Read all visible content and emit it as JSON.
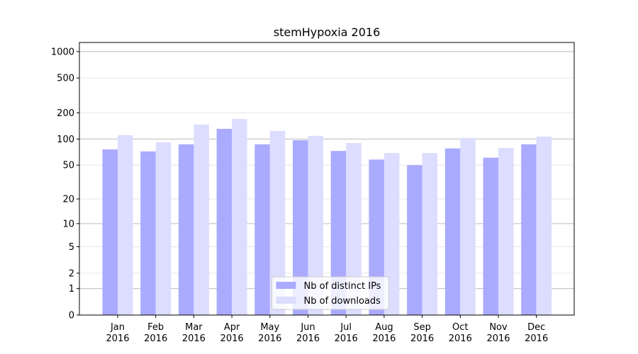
{
  "chart_data": {
    "type": "bar",
    "title": "stemHypoxia 2016",
    "categories": [
      "Jan\n2016",
      "Feb\n2016",
      "Mar\n2016",
      "Apr\n2016",
      "May\n2016",
      "Jun\n2016",
      "Jul\n2016",
      "Aug\n2016",
      "Sep\n2016",
      "Oct\n2016",
      "Nov\n2016",
      "Dec\n2016"
    ],
    "series": [
      {
        "name": "Nb of distinct IPs",
        "color": "#aaaaff",
        "values": [
          76,
          72,
          87,
          131,
          87,
          97,
          73,
          58,
          50,
          78,
          61,
          87
        ]
      },
      {
        "name": "Nb of downloads",
        "color": "#ddddff",
        "values": [
          111,
          92,
          147,
          170,
          124,
          109,
          90,
          69,
          69,
          103,
          79,
          107
        ]
      }
    ],
    "yscale": "log1p",
    "ylim": [
      0,
      1270
    ],
    "yticks": [
      0,
      1,
      2,
      5,
      10,
      20,
      50,
      100,
      200,
      500,
      1000
    ],
    "grid": true,
    "legend": "lower center"
  }
}
